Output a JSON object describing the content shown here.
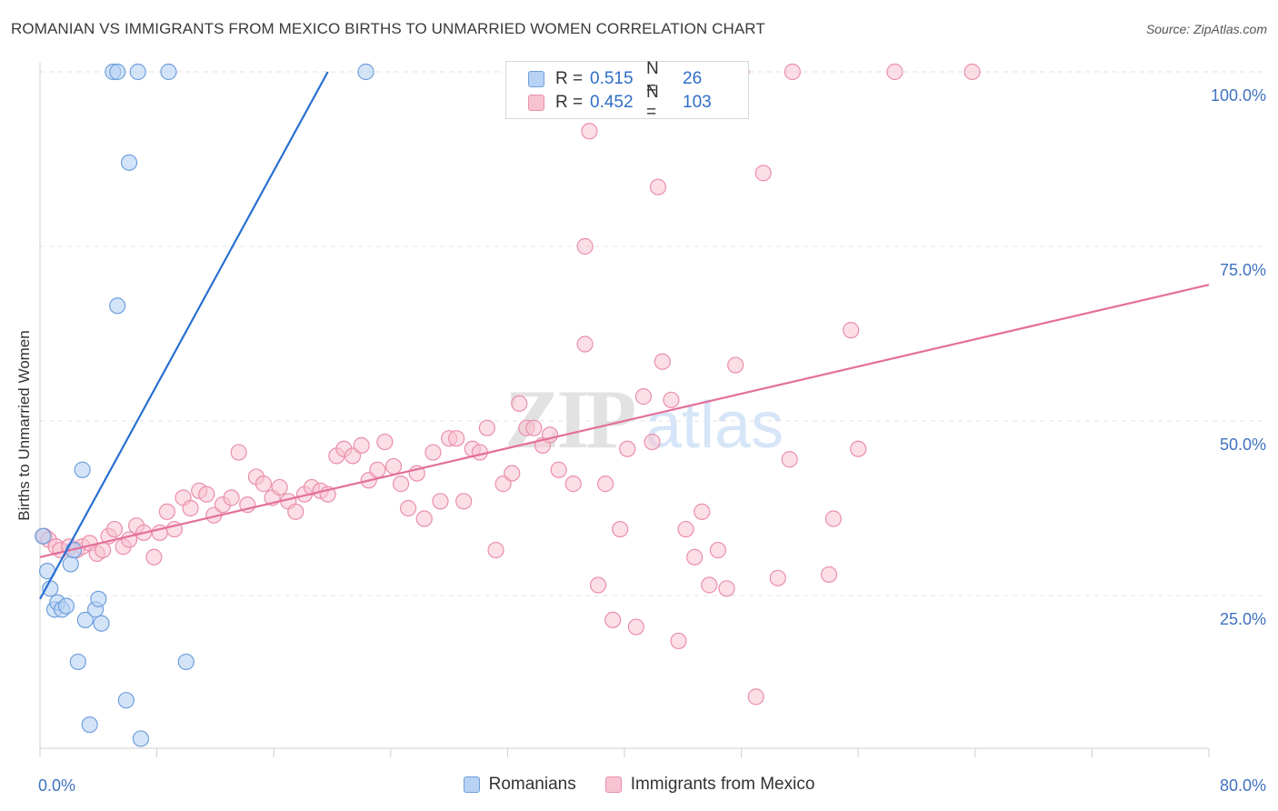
{
  "title": "ROMANIAN VS IMMIGRANTS FROM MEXICO BIRTHS TO UNMARRIED WOMEN CORRELATION CHART",
  "source": "Source: ZipAtlas.com",
  "legend_top": {
    "rows": [
      {
        "r_label": "R =",
        "r_value": "0.515",
        "n_label": "N =",
        "n_value": "26"
      },
      {
        "r_label": "R =",
        "r_value": "0.452",
        "n_label": "N =",
        "n_value": "103"
      }
    ]
  },
  "legend_bottom": [
    "Romanians",
    "Immigrants from Mexico"
  ],
  "colors": {
    "romanians_fill": "#b8d2f4",
    "romanians_stroke": "#6f9fdd",
    "romanians_line": "#2a6fd1",
    "mexico_fill": "#f7c3d2",
    "mexico_stroke": "#ea8fab",
    "mexico_line": "#e3709a",
    "tick_label": "#3f72c0",
    "grid": "#e3e3e3"
  },
  "chart_data": {
    "type": "scatter",
    "title": "ROMANIAN VS IMMIGRANTS FROM MEXICO BIRTHS TO UNMARRIED WOMEN CORRELATION CHART",
    "xlabel": "",
    "ylabel": "Births to Unmarried Women",
    "xlim": [
      0,
      80
    ],
    "ylim": [
      0,
      102
    ],
    "x_tick_labels": [
      "0.0%",
      "80.0%"
    ],
    "y_ticks": [
      25,
      50,
      75,
      100
    ],
    "y_tick_labels": [
      "25.0%",
      "50.0%",
      "75.0%",
      "100.0%"
    ],
    "grid": "horizontal dashed",
    "legend_position": "top-center",
    "series": [
      {
        "name": "Romanians",
        "r": 0.515,
        "n": 26,
        "trend": {
          "x": [
            0,
            19.7
          ],
          "y": [
            24.5,
            100
          ]
        },
        "points": [
          [
            0.2,
            33.5
          ],
          [
            0.5,
            28.5
          ],
          [
            0.7,
            26.0
          ],
          [
            1.0,
            23.0
          ],
          [
            1.2,
            24.0
          ],
          [
            1.5,
            23.0
          ],
          [
            1.8,
            23.5
          ],
          [
            2.1,
            29.5
          ],
          [
            2.3,
            31.5
          ],
          [
            2.6,
            15.5
          ],
          [
            2.9,
            43.0
          ],
          [
            3.1,
            21.5
          ],
          [
            3.4,
            6.5
          ],
          [
            3.8,
            23.0
          ],
          [
            4.0,
            24.5
          ],
          [
            4.2,
            21.0
          ],
          [
            5.0,
            100.0
          ],
          [
            5.3,
            100.0
          ],
          [
            5.9,
            10.0
          ],
          [
            6.1,
            87.0
          ],
          [
            6.7,
            100.0
          ],
          [
            6.9,
            4.5
          ],
          [
            5.3,
            66.5
          ],
          [
            8.8,
            100.0
          ],
          [
            10.0,
            15.5
          ],
          [
            22.3,
            100.0
          ]
        ]
      },
      {
        "name": "Immigrants from Mexico",
        "r": 0.452,
        "n": 103,
        "trend": {
          "x": [
            0,
            80
          ],
          "y": [
            30.5,
            69.5
          ]
        },
        "points": [
          [
            0.3,
            33.5
          ],
          [
            0.6,
            33.0
          ],
          [
            1.1,
            32.0
          ],
          [
            1.4,
            31.5
          ],
          [
            2.0,
            32.0
          ],
          [
            2.5,
            31.5
          ],
          [
            2.9,
            32.0
          ],
          [
            3.4,
            32.5
          ],
          [
            3.9,
            31.0
          ],
          [
            4.3,
            31.5
          ],
          [
            4.7,
            33.5
          ],
          [
            5.1,
            34.5
          ],
          [
            5.7,
            32.0
          ],
          [
            6.1,
            33.0
          ],
          [
            6.6,
            35.0
          ],
          [
            7.1,
            34.0
          ],
          [
            7.8,
            30.5
          ],
          [
            8.2,
            34.0
          ],
          [
            8.7,
            37.0
          ],
          [
            9.2,
            34.5
          ],
          [
            9.8,
            39.0
          ],
          [
            10.3,
            37.5
          ],
          [
            10.9,
            40.0
          ],
          [
            11.4,
            39.5
          ],
          [
            11.9,
            36.5
          ],
          [
            12.5,
            38.0
          ],
          [
            13.1,
            39.0
          ],
          [
            13.6,
            45.5
          ],
          [
            14.2,
            38.0
          ],
          [
            14.8,
            42.0
          ],
          [
            15.3,
            41.0
          ],
          [
            15.9,
            39.0
          ],
          [
            16.4,
            40.5
          ],
          [
            17.0,
            38.5
          ],
          [
            17.5,
            37.0
          ],
          [
            18.1,
            39.5
          ],
          [
            18.6,
            40.5
          ],
          [
            19.2,
            40.0
          ],
          [
            19.7,
            39.5
          ],
          [
            20.3,
            45.0
          ],
          [
            20.8,
            46.0
          ],
          [
            21.4,
            45.0
          ],
          [
            22.0,
            46.5
          ],
          [
            22.5,
            41.5
          ],
          [
            23.1,
            43.0
          ],
          [
            23.6,
            47.0
          ],
          [
            24.2,
            43.5
          ],
          [
            24.7,
            41.0
          ],
          [
            25.2,
            37.5
          ],
          [
            25.8,
            42.5
          ],
          [
            26.3,
            36.0
          ],
          [
            26.9,
            45.5
          ],
          [
            27.4,
            38.5
          ],
          [
            28.0,
            47.5
          ],
          [
            28.5,
            47.5
          ],
          [
            29.0,
            38.5
          ],
          [
            29.6,
            46.0
          ],
          [
            30.1,
            45.5
          ],
          [
            30.6,
            49.0
          ],
          [
            31.2,
            31.5
          ],
          [
            31.7,
            41.0
          ],
          [
            32.3,
            42.5
          ],
          [
            32.8,
            52.5
          ],
          [
            33.3,
            49.0
          ],
          [
            33.8,
            49.0
          ],
          [
            34.4,
            46.5
          ],
          [
            34.9,
            48.0
          ],
          [
            35.5,
            43.0
          ],
          [
            36.5,
            41.0
          ],
          [
            37.3,
            61.0
          ],
          [
            37.3,
            75.0
          ],
          [
            37.6,
            91.5
          ],
          [
            38.2,
            26.5
          ],
          [
            38.7,
            41.0
          ],
          [
            39.2,
            21.5
          ],
          [
            39.7,
            34.5
          ],
          [
            40.2,
            46.0
          ],
          [
            40.8,
            20.5
          ],
          [
            41.3,
            53.5
          ],
          [
            41.9,
            47.0
          ],
          [
            42.3,
            83.5
          ],
          [
            42.6,
            58.5
          ],
          [
            43.2,
            53.0
          ],
          [
            43.7,
            18.5
          ],
          [
            44.2,
            34.5
          ],
          [
            44.8,
            30.5
          ],
          [
            45.3,
            37.0
          ],
          [
            45.8,
            26.5
          ],
          [
            46.4,
            31.5
          ],
          [
            47.6,
            58.0
          ],
          [
            48.0,
            100.0
          ],
          [
            49.5,
            85.5
          ],
          [
            50.5,
            27.5
          ],
          [
            51.3,
            44.5
          ],
          [
            51.5,
            100.0
          ],
          [
            54.0,
            28.0
          ],
          [
            55.5,
            63.0
          ],
          [
            58.5,
            100.0
          ],
          [
            63.8,
            100.0
          ],
          [
            49.0,
            10.5
          ],
          [
            54.3,
            36.0
          ],
          [
            47.0,
            26.0
          ],
          [
            56.0,
            46.0
          ]
        ]
      }
    ]
  }
}
